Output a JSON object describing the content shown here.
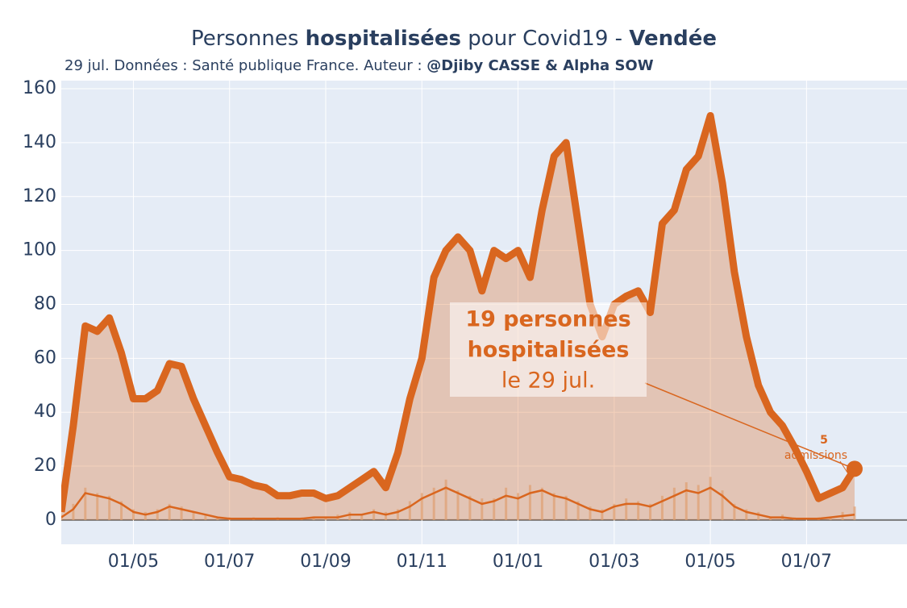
{
  "chart_data": {
    "type": "line",
    "title": [
      "Personnes ",
      "hospitalisées",
      " pour Covid19 - ",
      "Vendée"
    ],
    "subtitle": [
      "29 jul. Données : Santé publique France. Auteur : ",
      "@Djiby CASSE & Alpha SOW"
    ],
    "categories": [
      null,
      null,
      null,
      null,
      null,
      null,
      "01/05",
      null,
      null,
      null,
      null,
      null,
      null,
      null,
      "01/07",
      null,
      null,
      null,
      null,
      null,
      null,
      null,
      "01/09",
      null,
      null,
      null,
      null,
      null,
      null,
      null,
      "01/11",
      null,
      null,
      null,
      null,
      null,
      null,
      null,
      "01/01",
      null,
      null,
      null,
      null,
      null,
      null,
      null,
      "01/03",
      null,
      null,
      null,
      null,
      null,
      null,
      null,
      "01/05",
      null,
      null,
      null,
      null,
      null,
      null,
      null,
      "01/07",
      null,
      null,
      null,
      null
    ],
    "series": [
      {
        "type": "area-line",
        "color": "#d9661f",
        "values": [
          3,
          35,
          72,
          70,
          75,
          62,
          45,
          45,
          48,
          58,
          57,
          45,
          35,
          25,
          16,
          15,
          13,
          12,
          9,
          9,
          10,
          10,
          8,
          9,
          12,
          15,
          18,
          12,
          25,
          45,
          60,
          90,
          100,
          105,
          100,
          85,
          100,
          97,
          100,
          90,
          115,
          135,
          140,
          110,
          80,
          68,
          80,
          83,
          85,
          77,
          110,
          115,
          130,
          135,
          150,
          125,
          92,
          68,
          50,
          40,
          35,
          27,
          18,
          8,
          10,
          12,
          19
        ]
      },
      {
        "type": "bar",
        "color": "#e0a070",
        "values": [
          2,
          6,
          12,
          10,
          9,
          7,
          4,
          3,
          4,
          6,
          5,
          3,
          2,
          1,
          1,
          0,
          1,
          0,
          1,
          0,
          1,
          1,
          1,
          2,
          3,
          2,
          4,
          3,
          4,
          7,
          10,
          12,
          15,
          11,
          9,
          8,
          8,
          12,
          10,
          13,
          12,
          10,
          9,
          7,
          5,
          4,
          6,
          8,
          7,
          6,
          9,
          12,
          14,
          13,
          16,
          11,
          6,
          4,
          3,
          1,
          2,
          1,
          0,
          1,
          1,
          3,
          5
        ]
      },
      {
        "type": "line",
        "color": "#d9661f",
        "values": [
          1,
          4,
          10,
          9,
          8,
          6,
          3,
          2,
          3,
          5,
          4,
          3,
          2,
          1,
          0.5,
          0.5,
          0.5,
          0.5,
          0.5,
          0.5,
          0.5,
          1,
          1,
          1,
          2,
          2,
          3,
          2,
          3,
          5,
          8,
          10,
          12,
          10,
          8,
          6,
          7,
          9,
          8,
          10,
          11,
          9,
          8,
          6,
          4,
          3,
          5,
          6,
          6,
          5,
          7,
          9,
          11,
          10,
          12,
          9,
          5,
          3,
          2,
          1,
          1,
          0.5,
          0.5,
          0.5,
          1,
          1.5,
          2
        ]
      }
    ],
    "ylim": [
      -9,
      163
    ],
    "yticks": [
      0,
      20,
      40,
      60,
      80,
      100,
      120,
      140,
      160
    ],
    "grid": true,
    "annotations": [
      {
        "lines": [
          "19 personnes",
          "hospitalisées",
          "le 29 jul."
        ]
      },
      {
        "value": 5,
        "text": "admissions"
      }
    ]
  }
}
